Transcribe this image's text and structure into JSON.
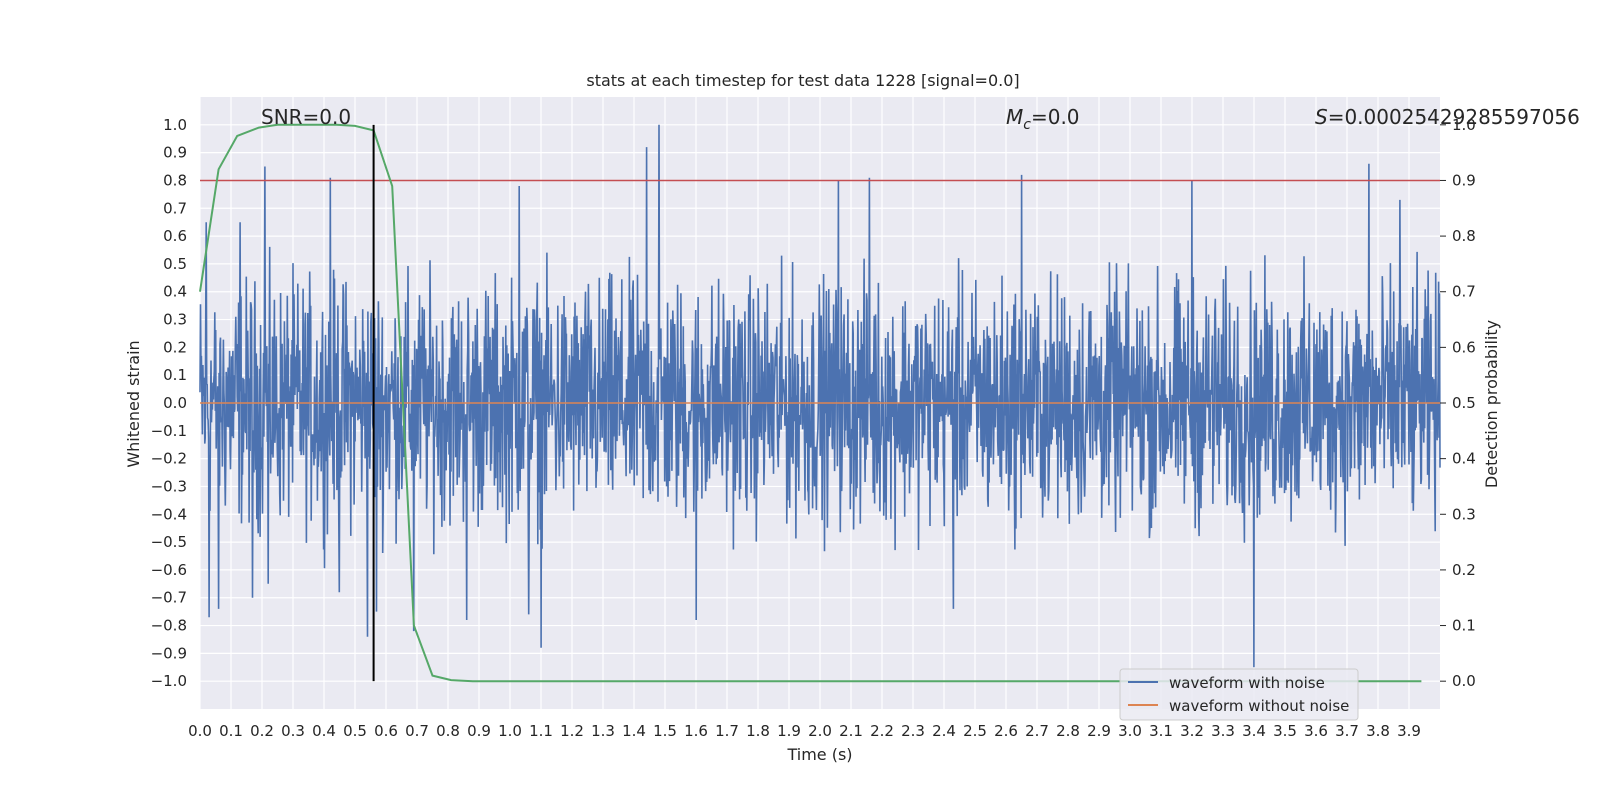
{
  "chart_data": {
    "type": "line",
    "title": "stats at each timestep for test data 1228 [signal=0.0]",
    "xlabel": "Time (s)",
    "ylabel": "Whitened strain",
    "ylabel_right": "Detection probability",
    "xlim": [
      0.0,
      4.0
    ],
    "ylim": [
      -1.1,
      1.1
    ],
    "ylim_right": [
      -0.05,
      1.05
    ],
    "x_ticks": [
      "0.0",
      "0.1",
      "0.2",
      "0.3",
      "0.4",
      "0.5",
      "0.6",
      "0.7",
      "0.8",
      "0.9",
      "1.0",
      "1.1",
      "1.2",
      "1.3",
      "1.4",
      "1.5",
      "1.6",
      "1.7",
      "1.8",
      "1.9",
      "2.0",
      "2.1",
      "2.2",
      "2.3",
      "2.4",
      "2.5",
      "2.6",
      "2.7",
      "2.8",
      "2.9",
      "3.0",
      "3.1",
      "3.2",
      "3.3",
      "3.4",
      "3.5",
      "3.6",
      "3.7",
      "3.8",
      "3.9"
    ],
    "y_ticks": [
      "1.0",
      "0.9",
      "0.8",
      "0.7",
      "0.6",
      "0.5",
      "0.4",
      "0.3",
      "0.2",
      "0.1",
      "0.0",
      "−0.1",
      "−0.2",
      "−0.3",
      "−0.4",
      "−0.5",
      "−0.6",
      "−0.7",
      "−0.8",
      "−0.9",
      "−1.0"
    ],
    "y_ticks_right": [
      "1.0",
      "0.9",
      "0.8",
      "0.7",
      "0.6",
      "0.5",
      "0.4",
      "0.3",
      "0.2",
      "0.1",
      "0.0"
    ],
    "annotations": {
      "snr": "SNR=0.0",
      "mc_symbol": "M",
      "mc_sub": "c",
      "mc_value": "=0.0",
      "s_symbol": "S",
      "s_value": "=0.00025429285597056"
    },
    "grid": true,
    "legend": {
      "placement": "bottom-right",
      "entries": [
        "waveform with noise",
        "waveform without noise"
      ]
    },
    "series": [
      {
        "name": "waveform with noise",
        "color": "#4c72b0",
        "axis": "left",
        "envelope_typical": 0.38,
        "peaks": [
          [
            0.02,
            0.65
          ],
          [
            0.03,
            -0.77
          ],
          [
            0.06,
            -0.74
          ],
          [
            0.13,
            0.65
          ],
          [
            0.17,
            -0.7
          ],
          [
            0.21,
            0.85
          ],
          [
            0.22,
            -0.65
          ],
          [
            0.42,
            0.81
          ],
          [
            0.45,
            -0.68
          ],
          [
            0.54,
            -0.84
          ],
          [
            0.57,
            -0.75
          ],
          [
            0.69,
            -0.82
          ],
          [
            0.86,
            -0.78
          ],
          [
            1.03,
            0.78
          ],
          [
            1.06,
            -0.76
          ],
          [
            1.1,
            0.79
          ],
          [
            1.1,
            -0.88
          ],
          [
            1.44,
            0.92
          ],
          [
            1.48,
            1.0
          ],
          [
            1.6,
            -0.78
          ],
          [
            2.06,
            0.8
          ],
          [
            2.16,
            0.81
          ],
          [
            2.43,
            -0.74
          ],
          [
            2.65,
            0.82
          ],
          [
            3.2,
            0.8
          ],
          [
            3.4,
            -0.95
          ],
          [
            3.77,
            0.86
          ],
          [
            3.87,
            0.73
          ]
        ],
        "values": []
      },
      {
        "name": "waveform without noise",
        "color": "#dd8452",
        "axis": "left",
        "values": [
          0.0,
          0.0
        ]
      },
      {
        "name": "detection probability",
        "color": "#55a868",
        "axis": "right",
        "x": [
          0.0,
          0.06,
          0.12,
          0.19,
          0.25,
          0.31,
          0.38,
          0.44,
          0.5,
          0.56,
          0.62,
          0.69,
          0.75,
          0.81,
          0.88,
          0.94,
          1.0,
          3.94
        ],
        "values": [
          0.7,
          0.92,
          0.98,
          0.995,
          1.0,
          1.0,
          1.0,
          1.0,
          0.998,
          0.99,
          0.89,
          0.1,
          0.01,
          0.002,
          0.0,
          0.0,
          0.0,
          0.0
        ]
      }
    ],
    "threshold_line": {
      "value": 0.8,
      "color": "#c44e52",
      "axis": "left"
    },
    "event_marker": {
      "x": 0.56,
      "y0": -1.0,
      "y1": 1.0,
      "color": "#000000"
    }
  }
}
